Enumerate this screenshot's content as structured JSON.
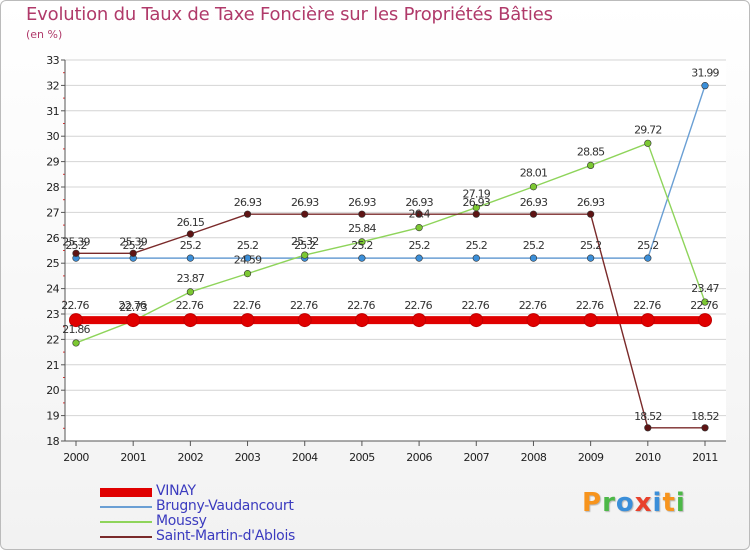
{
  "header": {
    "title": "Evolution du Taux de Taxe Foncière sur les Propriétés Bâties",
    "subtitle": "(en %)"
  },
  "brand": {
    "text": "Proxiti",
    "letters": [
      "P",
      "r",
      "o",
      "x",
      "i",
      "t",
      "i"
    ],
    "colors": [
      "#f7941d",
      "#4db848",
      "#3b8fd9",
      "#e8412c",
      "#3b8fd9",
      "#f7941d",
      "#4db848"
    ]
  },
  "chart_data": {
    "type": "line",
    "title": "Evolution du Taux de Taxe Foncière sur les Propriétés Bâties",
    "ylabel": "(en %)",
    "xlabel": "",
    "categories": [
      "2000",
      "2001",
      "2002",
      "2003",
      "2004",
      "2005",
      "2006",
      "2007",
      "2008",
      "2009",
      "2010",
      "2011"
    ],
    "ylim": [
      18,
      33
    ],
    "yticks": [
      18,
      19,
      20,
      21,
      22,
      23,
      24,
      25,
      26,
      27,
      28,
      29,
      30,
      31,
      32,
      33
    ],
    "grid": "horizontal",
    "legend_position": "bottom-left",
    "series": [
      {
        "name": "VINAY",
        "color": "#e00000",
        "emphasis": true,
        "values": [
          22.76,
          22.76,
          22.76,
          22.76,
          22.76,
          22.76,
          22.76,
          22.76,
          22.76,
          22.76,
          22.76,
          22.76
        ],
        "labels": [
          "22.76",
          "22.76",
          "22.76",
          "22.76",
          "22.76",
          "22.76",
          "22.76",
          "22.76",
          "22.76",
          "22.76",
          "22.76",
          "22.76"
        ]
      },
      {
        "name": "Brugny-Vaudancourt",
        "color": "#6a9fd4",
        "marker": "#3b8fd9",
        "values": [
          25.2,
          25.2,
          25.2,
          25.2,
          25.2,
          25.2,
          25.2,
          25.2,
          25.2,
          25.2,
          25.2,
          31.99
        ],
        "labels": [
          "25.2",
          "25.2",
          "25.2",
          "25.2",
          "25.2",
          "25.2",
          "25.2",
          "25.2",
          "25.2",
          "25.2",
          "25.2",
          "31.99"
        ]
      },
      {
        "name": "Moussy",
        "color": "#8ed45a",
        "marker": "#7cc832",
        "values": [
          21.86,
          22.73,
          23.87,
          24.59,
          25.32,
          25.84,
          26.4,
          27.19,
          28.01,
          28.85,
          29.72,
          23.47
        ],
        "labels": [
          "21.86",
          "22.73",
          "23.87",
          "24.59",
          "25.32",
          "25.84",
          "26.4",
          "27.19",
          "28.01",
          "28.85",
          "29.72",
          "23.47"
        ]
      },
      {
        "name": "Saint-Martin-d'Ablois",
        "color": "#7a2a2a",
        "marker": "#5e1414",
        "values": [
          25.39,
          25.39,
          26.15,
          26.93,
          26.93,
          26.93,
          26.93,
          26.93,
          26.93,
          26.93,
          18.52,
          18.52
        ],
        "labels": [
          "25.39",
          "25.39",
          "26.15",
          "26.93",
          "26.93",
          "26.93",
          "26.93",
          "26.93",
          "26.93",
          "26.93",
          "18.52",
          "18.52"
        ]
      }
    ]
  }
}
